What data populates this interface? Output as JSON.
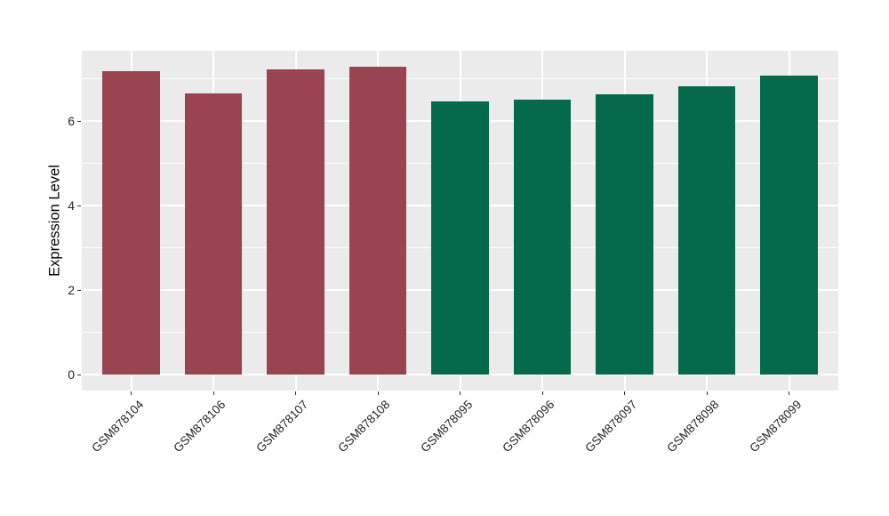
{
  "chart_data": {
    "type": "bar",
    "title": "",
    "xlabel": "",
    "ylabel": "Expression Level",
    "categories": [
      "GSM878104",
      "GSM878106",
      "GSM878107",
      "GSM878108",
      "GSM878095",
      "GSM878096",
      "GSM878097",
      "GSM878098",
      "GSM878099"
    ],
    "values": [
      7.18,
      6.67,
      7.23,
      7.3,
      6.48,
      6.52,
      6.63,
      6.83,
      7.09
    ],
    "bar_colors": [
      "#9B4451",
      "#9B4451",
      "#9B4451",
      "#9B4451",
      "#046A4B",
      "#046A4B",
      "#046A4B",
      "#046A4B",
      "#046A4B"
    ],
    "color_groups": [
      {
        "color": "#9B4451",
        "categories": [
          "GSM878104",
          "GSM878106",
          "GSM878107",
          "GSM878108"
        ]
      },
      {
        "color": "#046A4B",
        "categories": [
          "GSM878095",
          "GSM878096",
          "GSM878097",
          "GSM878098",
          "GSM878099"
        ]
      }
    ],
    "yticks": [
      0,
      2,
      4,
      6
    ],
    "minor_yticks": [
      1,
      3,
      5,
      7
    ],
    "ylim": [
      -0.37,
      7.67
    ],
    "bar_width_fraction": 0.7,
    "grid": "on",
    "legend": "none",
    "panel_background": "#EBEBEB",
    "grid_color": "#FFFFFF",
    "x_tick_label_rotation_deg": 45
  }
}
